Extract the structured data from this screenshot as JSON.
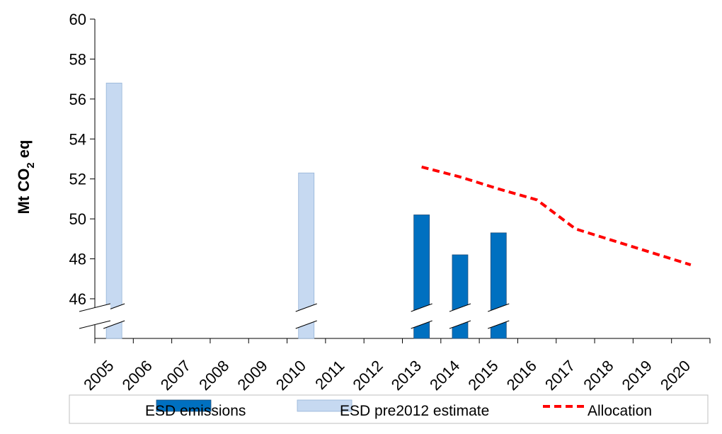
{
  "chart_data": {
    "type": "bar",
    "categories": [
      "2005",
      "2006",
      "2007",
      "2008",
      "2009",
      "2010",
      "2011",
      "2012",
      "2013",
      "2014",
      "2015",
      "2016",
      "2017",
      "2018",
      "2019",
      "2020"
    ],
    "series": [
      {
        "name": "ESD emissions",
        "type": "bar",
        "color": "#0070C0",
        "values": [
          null,
          null,
          null,
          null,
          null,
          null,
          null,
          null,
          50.2,
          48.2,
          49.3,
          null,
          null,
          null,
          null,
          null
        ]
      },
      {
        "name": "ESD pre2012 estimate",
        "type": "bar",
        "color": "#C6D9F1",
        "values": [
          56.8,
          null,
          null,
          null,
          null,
          52.3,
          null,
          null,
          null,
          null,
          null,
          null,
          null,
          null,
          null,
          null
        ]
      },
      {
        "name": "Allocation",
        "type": "line",
        "style": "dashed",
        "color": "#FF0000",
        "values": [
          null,
          null,
          null,
          null,
          null,
          null,
          null,
          null,
          52.6,
          52.1,
          51.5,
          50.95,
          49.5,
          48.9,
          48.3,
          47.7
        ]
      }
    ],
    "ylabel": {
      "main": "Mt CO",
      "sub": "2",
      "suffix": " eq"
    },
    "ylim": [
      44,
      60
    ],
    "yticks": [
      46,
      48,
      50,
      52,
      54,
      56,
      58,
      60
    ],
    "axis_break": true,
    "grid": false,
    "legend_position": "bottom"
  }
}
